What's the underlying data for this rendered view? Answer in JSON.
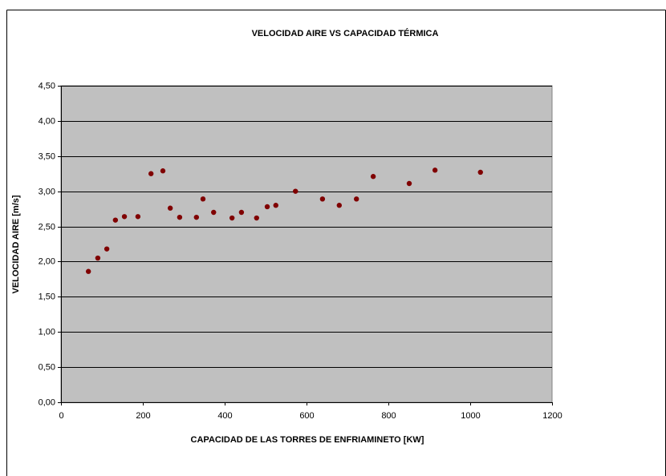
{
  "chart_data": {
    "type": "scatter",
    "title": "VELOCIDAD AIRE VS CAPACIDAD TÉRMICA",
    "x_label": "CAPACIDAD DE LAS TORRES DE ENFRIAMINETO [KW]",
    "y_label": "VELOCIDAD AIRE [m/s]",
    "series": [
      {
        "color": "#800000",
        "x": [
          67,
          90,
          112,
          133,
          155,
          188,
          220,
          249,
          267,
          290,
          331,
          347,
          373,
          418,
          441,
          478,
          504,
          525,
          573,
          639,
          680,
          722,
          763,
          851,
          914,
          1025
        ],
        "values": [
          1.86,
          2.05,
          2.18,
          2.59,
          2.64,
          2.64,
          3.25,
          3.29,
          2.76,
          2.63,
          2.63,
          2.89,
          2.7,
          2.62,
          2.7,
          2.62,
          2.78,
          2.8,
          3.0,
          2.89,
          2.8,
          2.89,
          3.21,
          3.11,
          3.3,
          3.27
        ]
      }
    ],
    "xlim": [
      0,
      1200
    ],
    "xticks": [
      0,
      200,
      400,
      600,
      800,
      1000,
      1200
    ],
    "ylim": [
      0,
      4.5
    ],
    "yticks": [
      {
        "value": 0,
        "label": "0,00"
      },
      {
        "value": 0.5,
        "label": "0,50"
      },
      {
        "value": 1,
        "label": "1,00"
      },
      {
        "value": 1.5,
        "label": "1,50"
      },
      {
        "value": 2,
        "label": "2,00"
      },
      {
        "value": 2.5,
        "label": "2,50"
      },
      {
        "value": 3,
        "label": "3,00"
      },
      {
        "value": 3.5,
        "label": "3,50"
      },
      {
        "value": 4,
        "label": "4,00"
      },
      {
        "value": 4.5,
        "label": "4,50"
      }
    ],
    "grid": true,
    "plot_background": "#c0c0c0"
  }
}
